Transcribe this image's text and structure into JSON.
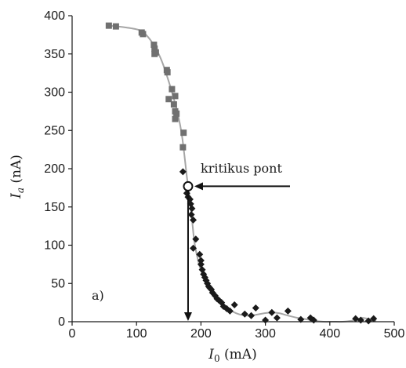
{
  "chart_data": {
    "type": "scatter",
    "xlabel_main": "I",
    "xlabel_sub": "0",
    "xlabel_unit": " (mA)",
    "ylabel_main": "I",
    "ylabel_sub": "a",
    "ylabel_unit": " (nA)",
    "xlim": [
      0,
      500
    ],
    "ylim": [
      0,
      400
    ],
    "xticks": [
      0,
      100,
      200,
      300,
      400,
      500
    ],
    "yticks": [
      0,
      50,
      100,
      150,
      200,
      250,
      300,
      350,
      400
    ],
    "grid": false,
    "panel_label": "a)",
    "annotation": {
      "text": "kritikus pont",
      "point": [
        180,
        177
      ]
    },
    "colors": {
      "squares": "#707070",
      "diamonds": "#1a1a1a",
      "fit_curve": "#a6a6a6",
      "axis": "#1a1a1a"
    },
    "series": [
      {
        "marker": "square",
        "points": [
          [
            57,
            387
          ],
          [
            68,
            386
          ],
          [
            108,
            378
          ],
          [
            110,
            376
          ],
          [
            127,
            362
          ],
          [
            128,
            357
          ],
          [
            130,
            352
          ],
          [
            128,
            350
          ],
          [
            147,
            329
          ],
          [
            148,
            326
          ],
          [
            155,
            304
          ],
          [
            150,
            291
          ],
          [
            160,
            295
          ],
          [
            158,
            284
          ],
          [
            160,
            275
          ],
          [
            162,
            272
          ],
          [
            160,
            265
          ],
          [
            173,
            247
          ],
          [
            172,
            228
          ]
        ]
      },
      {
        "marker": "diamond",
        "points": [
          [
            172,
            196
          ],
          [
            178,
            168
          ],
          [
            180,
            163
          ],
          [
            183,
            160
          ],
          [
            184,
            154
          ],
          [
            186,
            148
          ],
          [
            185,
            140
          ],
          [
            188,
            133
          ],
          [
            192,
            108
          ],
          [
            188,
            96
          ],
          [
            198,
            88
          ],
          [
            200,
            80
          ],
          [
            200,
            75
          ],
          [
            202,
            68
          ],
          [
            204,
            62
          ],
          [
            206,
            58
          ],
          [
            208,
            54
          ],
          [
            210,
            50
          ],
          [
            212,
            46
          ],
          [
            214,
            44
          ],
          [
            216,
            42
          ],
          [
            218,
            38
          ],
          [
            222,
            34
          ],
          [
            225,
            30
          ],
          [
            228,
            28
          ],
          [
            232,
            25
          ],
          [
            235,
            20
          ],
          [
            240,
            17
          ],
          [
            245,
            14
          ],
          [
            252,
            22
          ],
          [
            268,
            10
          ],
          [
            278,
            8
          ],
          [
            285,
            18
          ],
          [
            300,
            2
          ],
          [
            310,
            12
          ],
          [
            318,
            5
          ],
          [
            335,
            14
          ],
          [
            355,
            3
          ],
          [
            370,
            5
          ],
          [
            375,
            2
          ],
          [
            440,
            4
          ],
          [
            448,
            2
          ],
          [
            460,
            1
          ],
          [
            468,
            4
          ]
        ]
      }
    ],
    "fit_curve": [
      [
        57,
        387
      ],
      [
        80,
        385
      ],
      [
        105,
        381
      ],
      [
        118,
        372
      ],
      [
        130,
        357
      ],
      [
        140,
        339
      ],
      [
        150,
        314
      ],
      [
        158,
        291
      ],
      [
        165,
        268
      ],
      [
        170,
        246
      ],
      [
        174,
        220
      ],
      [
        178,
        190
      ],
      [
        181,
        172
      ],
      [
        184,
        150
      ],
      [
        187,
        126
      ],
      [
        190,
        103
      ],
      [
        195,
        82
      ],
      [
        200,
        67
      ],
      [
        207,
        53
      ],
      [
        215,
        42
      ],
      [
        225,
        30
      ],
      [
        240,
        18
      ],
      [
        255,
        11
      ],
      [
        270,
        8
      ],
      [
        285,
        9
      ],
      [
        298,
        11
      ],
      [
        310,
        12
      ],
      [
        322,
        11
      ],
      [
        335,
        8
      ],
      [
        350,
        5
      ],
      [
        365,
        3
      ],
      [
        378,
        1
      ],
      [
        390,
        0
      ],
      [
        405,
        0
      ],
      [
        420,
        0
      ],
      [
        432,
        1
      ],
      [
        442,
        3
      ],
      [
        450,
        5
      ],
      [
        458,
        4
      ],
      [
        466,
        2
      ],
      [
        472,
        1
      ]
    ]
  }
}
